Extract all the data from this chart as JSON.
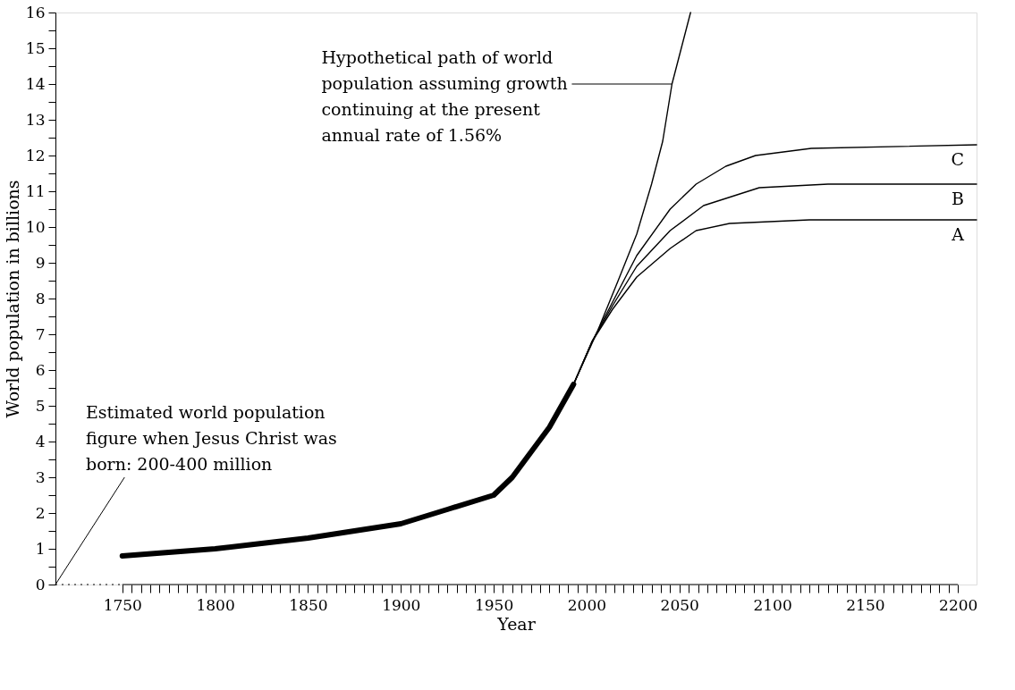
{
  "chart_data": {
    "type": "line",
    "xlabel": "Year",
    "ylabel": "World population in billions",
    "xlim": [
      1714,
      2210
    ],
    "ylim": [
      0,
      16
    ],
    "xticks": [
      1750,
      {
        "value": 1755,
        "label": null
      },
      {
        "value": 1760,
        "label": null
      },
      {
        "value": 1765,
        "label": null
      },
      {
        "value": 1770,
        "label": null
      },
      {
        "value": 1775,
        "label": null
      },
      {
        "value": 1780,
        "label": null
      },
      {
        "value": 1785,
        "label": null
      },
      {
        "value": 1790,
        "label": null
      },
      {
        "value": 1795,
        "label": null
      },
      1800,
      {
        "value": 1805,
        "label": null
      },
      {
        "value": 1810,
        "label": null
      },
      {
        "value": 1815,
        "label": null
      },
      {
        "value": 1820,
        "label": null
      },
      {
        "value": 1825,
        "label": null
      },
      {
        "value": 1830,
        "label": null
      },
      {
        "value": 1835,
        "label": null
      },
      {
        "value": 1840,
        "label": null
      },
      {
        "value": 1845,
        "label": null
      },
      1850,
      {
        "value": 1855,
        "label": null
      },
      {
        "value": 1860,
        "label": null
      },
      {
        "value": 1865,
        "label": null
      },
      {
        "value": 1870,
        "label": null
      },
      {
        "value": 1875,
        "label": null
      },
      {
        "value": 1880,
        "label": null
      },
      {
        "value": 1885,
        "label": null
      },
      {
        "value": 1890,
        "label": null
      },
      {
        "value": 1895,
        "label": null
      },
      1900,
      {
        "value": 1905,
        "label": null
      },
      {
        "value": 1910,
        "label": null
      },
      {
        "value": 1915,
        "label": null
      },
      {
        "value": 1920,
        "label": null
      },
      {
        "value": 1925,
        "label": null
      },
      {
        "value": 1930,
        "label": null
      },
      {
        "value": 1935,
        "label": null
      },
      {
        "value": 1940,
        "label": null
      },
      {
        "value": 1945,
        "label": null
      },
      1950,
      {
        "value": 1955,
        "label": null
      },
      {
        "value": 1960,
        "label": null
      },
      {
        "value": 1965,
        "label": null
      },
      {
        "value": 1970,
        "label": null
      },
      {
        "value": 1975,
        "label": null
      },
      {
        "value": 1980,
        "label": null
      },
      {
        "value": 1985,
        "label": null
      },
      {
        "value": 1990,
        "label": null
      },
      {
        "value": 1995,
        "label": null
      },
      2000,
      {
        "value": 2005,
        "label": null
      },
      {
        "value": 2010,
        "label": null
      },
      {
        "value": 2015,
        "label": null
      },
      {
        "value": 2020,
        "label": null
      },
      {
        "value": 2025,
        "label": null
      },
      {
        "value": 2030,
        "label": null
      },
      {
        "value": 2035,
        "label": null
      },
      {
        "value": 2040,
        "label": null
      },
      {
        "value": 2045,
        "label": null
      },
      2050,
      {
        "value": 2055,
        "label": null
      },
      {
        "value": 2060,
        "label": null
      },
      {
        "value": 2065,
        "label": null
      },
      {
        "value": 2070,
        "label": null
      },
      {
        "value": 2075,
        "label": null
      },
      {
        "value": 2080,
        "label": null
      },
      {
        "value": 2085,
        "label": null
      },
      {
        "value": 2090,
        "label": null
      },
      {
        "value": 2095,
        "label": null
      },
      2100,
      {
        "value": 2105,
        "label": null
      },
      {
        "value": 2110,
        "label": null
      },
      {
        "value": 2115,
        "label": null
      },
      {
        "value": 2120,
        "label": null
      },
      {
        "value": 2125,
        "label": null
      },
      {
        "value": 2130,
        "label": null
      },
      {
        "value": 2135,
        "label": null
      },
      {
        "value": 2140,
        "label": null
      },
      {
        "value": 2145,
        "label": null
      },
      2150,
      {
        "value": 2155,
        "label": null
      },
      {
        "value": 2160,
        "label": null
      },
      {
        "value": 2165,
        "label": null
      },
      {
        "value": 2170,
        "label": null
      },
      {
        "value": 2175,
        "label": null
      },
      {
        "value": 2180,
        "label": null
      },
      {
        "value": 2185,
        "label": null
      },
      {
        "value": 2190,
        "label": null
      },
      {
        "value": 2195,
        "label": null
      },
      2200
    ],
    "yticks": [
      0,
      {
        "value": 0.5,
        "label": null
      },
      1,
      {
        "value": 1.5,
        "label": null
      },
      2,
      {
        "value": 2.5,
        "label": null
      },
      3,
      {
        "value": 3.5,
        "label": null
      },
      4,
      {
        "value": 4.5,
        "label": null
      },
      5,
      {
        "value": 5.5,
        "label": null
      },
      6,
      {
        "value": 6.5,
        "label": null
      },
      7,
      {
        "value": 7.5,
        "label": null
      },
      8,
      {
        "value": 8.5,
        "label": null
      },
      9,
      {
        "value": 9.5,
        "label": null
      },
      10,
      {
        "value": 10.5,
        "label": null
      },
      11,
      {
        "value": 11.5,
        "label": null
      },
      12,
      {
        "value": 12.5,
        "label": null
      },
      13,
      {
        "value": 13.5,
        "label": null
      },
      14,
      {
        "value": 14.5,
        "label": null
      },
      15,
      {
        "value": 15.5,
        "label": null
      },
      16
    ],
    "grid": false,
    "line_style": "solid",
    "series": [
      {
        "color": "#000000",
        "x": [
          1750,
          1775,
          1800,
          1825,
          1850,
          1875,
          1900,
          1925,
          1950,
          1960,
          1970,
          1980,
          1993
        ],
        "values": [
          0.8,
          0.9,
          1.0,
          1.15,
          1.3,
          1.5,
          1.7,
          2.1,
          2.5,
          3.0,
          3.7,
          4.4,
          5.6
        ]
      },
      {
        "color": "#000000",
        "x": [
          1993,
          2006,
          2017,
          2027,
          2035,
          2041,
          2046,
          2051,
          2056
        ],
        "values": [
          5.6,
          7.1,
          8.5,
          9.8,
          11.2,
          12.4,
          14.0,
          15.0,
          16.0
        ]
      },
      {
        "name": "C",
        "color": "#000000",
        "x": [
          1993,
          2003,
          2014,
          2027,
          2045,
          2059,
          2075,
          2091,
          2121,
          2210
        ],
        "values": [
          5.6,
          6.8,
          7.9,
          9.2,
          10.5,
          11.2,
          11.7,
          12.0,
          12.2,
          12.3
        ]
      },
      {
        "name": "B",
        "color": "#000000",
        "x": [
          1993,
          2003,
          2014,
          2027,
          2045,
          2063,
          2093,
          2130,
          2210
        ],
        "values": [
          5.6,
          6.8,
          7.8,
          8.9,
          9.9,
          10.6,
          11.1,
          11.2,
          11.2
        ]
      },
      {
        "name": "A",
        "color": "#000000",
        "x": [
          1993,
          2003,
          2014,
          2027,
          2045,
          2059,
          2077,
          2120,
          2210
        ],
        "values": [
          5.6,
          6.8,
          7.7,
          8.6,
          9.4,
          9.9,
          10.1,
          10.2,
          10.2
        ]
      }
    ],
    "annotations": [
      {
        "text": "Hypothetical path of world\npopulation assuming growth\ncontinuing at the present\nannual rate of 1.56%",
        "x": 2046,
        "y": 14.0
      },
      "Estimated world population\nfigure when Jesus Christ was\nborn: 200-400 million"
    ]
  }
}
